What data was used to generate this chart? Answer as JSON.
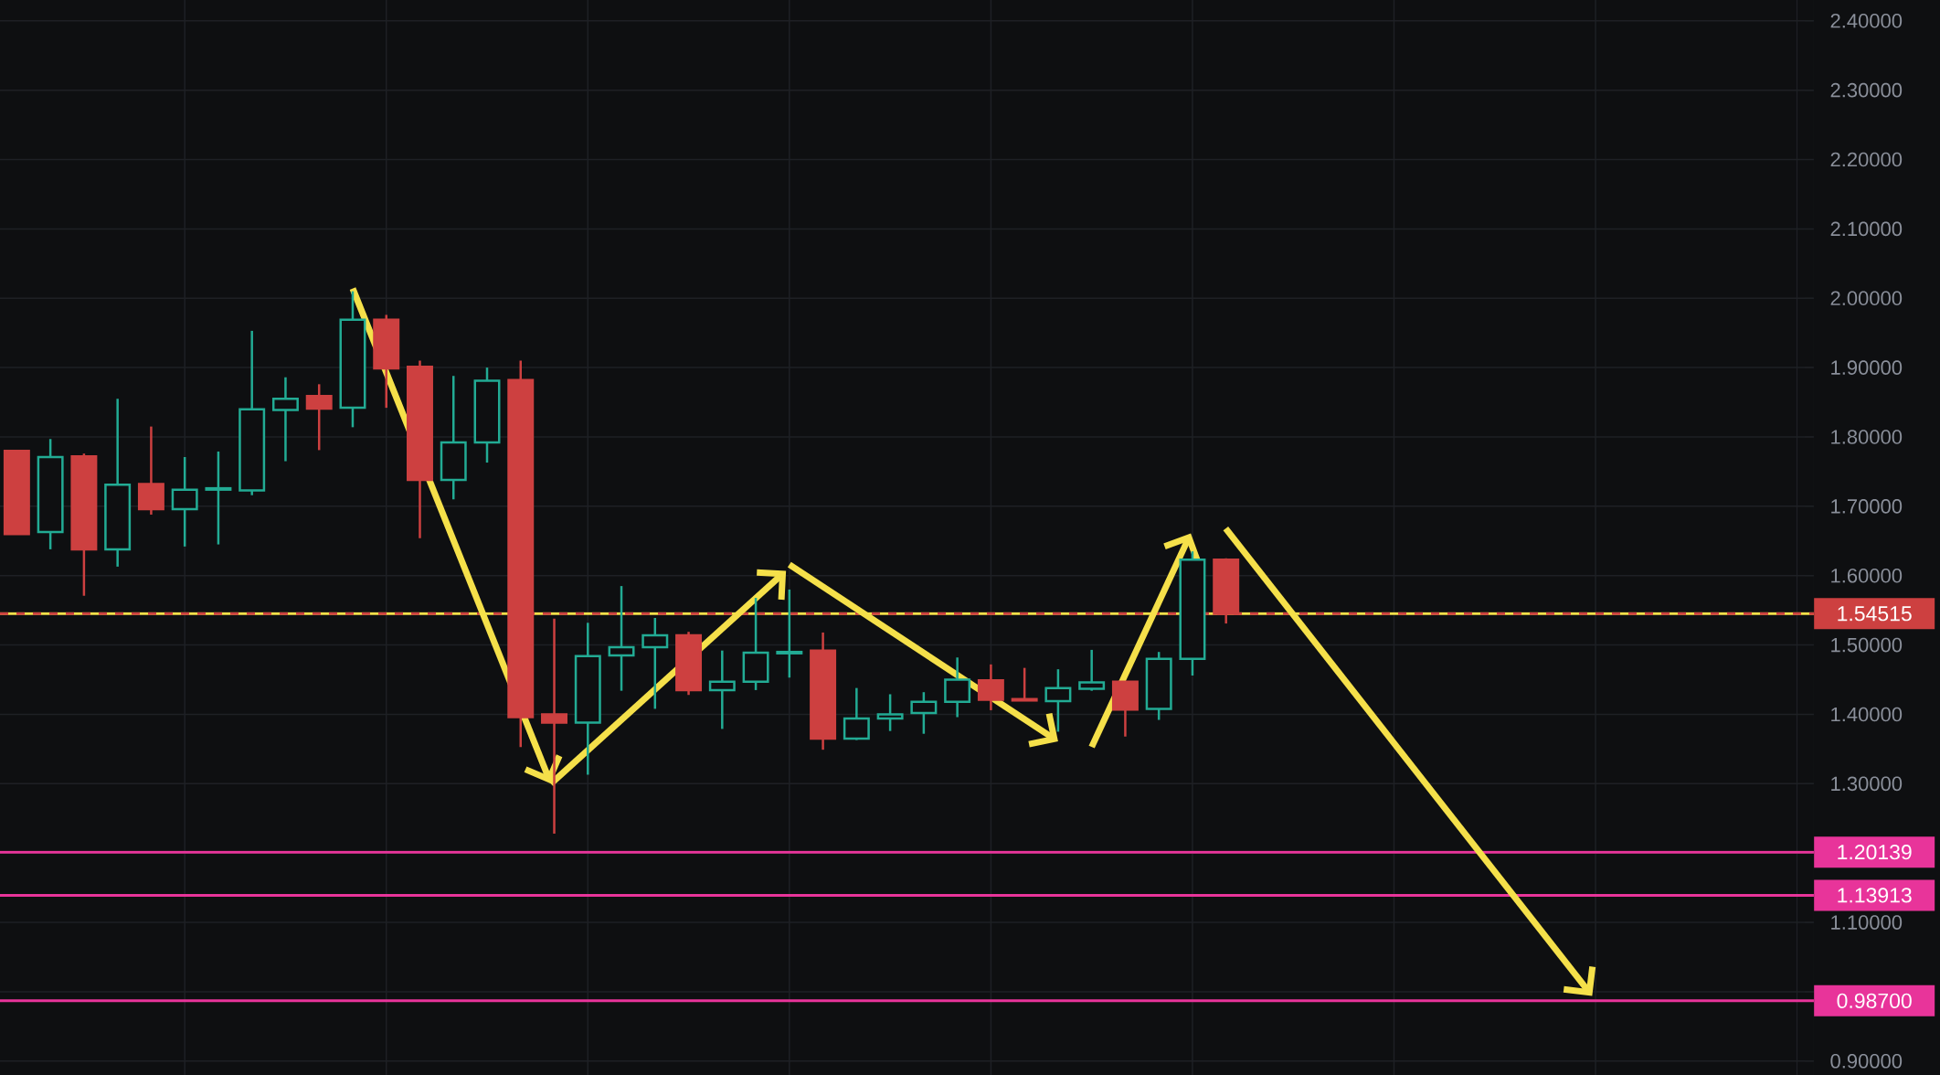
{
  "chart_data": {
    "type": "candlestick",
    "categories": [
      null,
      null,
      null,
      null,
      null,
      null,
      null,
      null,
      null,
      null,
      null,
      null,
      null,
      null,
      null,
      null,
      null,
      null,
      null,
      null,
      null,
      null,
      null,
      null,
      null,
      null,
      null,
      null,
      null,
      null,
      null,
      null,
      null,
      null,
      null,
      null,
      null,
      null,
      null,
      null,
      null,
      null,
      null,
      null,
      null,
      null,
      null,
      null,
      null,
      null,
      null,
      null,
      null,
      null
    ],
    "ohlc": [
      [
        1.78,
        1.78,
        1.66,
        1.66
      ],
      [
        1.663,
        1.797,
        1.638,
        1.771
      ],
      [
        1.772,
        1.776,
        1.571,
        1.638
      ],
      [
        1.638,
        1.855,
        1.613,
        1.731
      ],
      [
        1.732,
        1.815,
        1.688,
        1.696
      ],
      [
        1.696,
        1.771,
        1.642,
        1.724
      ],
      [
        1.724,
        1.779,
        1.645,
        1.726
      ],
      [
        1.723,
        1.953,
        1.716,
        1.84
      ],
      [
        1.839,
        1.886,
        1.765,
        1.855
      ],
      [
        1.859,
        1.876,
        1.781,
        1.841
      ],
      [
        1.842,
        2.01,
        1.814,
        1.969
      ],
      [
        1.969,
        1.976,
        1.842,
        1.899
      ],
      [
        1.901,
        1.91,
        1.654,
        1.738
      ],
      [
        1.738,
        1.888,
        1.71,
        1.792
      ],
      [
        1.792,
        1.9,
        1.763,
        1.881
      ],
      [
        1.882,
        1.91,
        1.353,
        1.396
      ],
      [
        1.4,
        1.538,
        1.228,
        1.388
      ],
      [
        1.388,
        1.532,
        1.313,
        1.484
      ],
      [
        1.485,
        1.585,
        1.434,
        1.497
      ],
      [
        1.497,
        1.539,
        1.408,
        1.514
      ],
      [
        1.514,
        1.519,
        1.428,
        1.435
      ],
      [
        1.435,
        1.492,
        1.379,
        1.447
      ],
      [
        1.447,
        1.568,
        1.435,
        1.489
      ],
      [
        1.488,
        1.58,
        1.453,
        1.49
      ],
      [
        1.492,
        1.518,
        1.349,
        1.365
      ],
      [
        1.365,
        1.438,
        1.363,
        1.394
      ],
      [
        1.394,
        1.429,
        1.376,
        1.4
      ],
      [
        1.402,
        1.432,
        1.372,
        1.418
      ],
      [
        1.418,
        1.482,
        1.396,
        1.45
      ],
      [
        1.449,
        1.472,
        1.406,
        1.421
      ],
      [
        1.422,
        1.467,
        1.42,
        1.42
      ],
      [
        1.419,
        1.465,
        1.375,
        1.438
      ],
      [
        1.437,
        1.493,
        1.434,
        1.446
      ],
      [
        1.447,
        1.447,
        1.368,
        1.407
      ],
      [
        1.408,
        1.49,
        1.392,
        1.48
      ],
      [
        1.48,
        1.635,
        1.456,
        1.623
      ],
      [
        1.623,
        1.625,
        1.531,
        1.545
      ],
      null,
      null,
      null,
      null,
      null,
      null,
      null,
      null,
      null,
      null,
      null,
      null,
      null,
      null,
      null,
      null,
      null
    ],
    "colors": [
      "#cd4040",
      "#22ab94",
      "#cd4040",
      "#22ab94",
      "#cd4040",
      "#22ab94",
      "#22ab94",
      "#22ab94",
      "#22ab94",
      "#cd4040",
      "#22ab94",
      "#cd4040",
      "#cd4040",
      "#22ab94",
      "#22ab94",
      "#cd4040",
      "#cd4040",
      "#22ab94",
      "#22ab94",
      "#22ab94",
      "#cd4040",
      "#22ab94",
      "#22ab94",
      "#22ab94",
      "#cd4040",
      "#22ab94",
      "#22ab94",
      "#22ab94",
      "#22ab94",
      "#cd4040",
      "#cd4040",
      "#22ab94",
      "#22ab94",
      "#cd4040",
      "#22ab94",
      "#22ab94",
      "#cd4040",
      null,
      null,
      null,
      null,
      null,
      null,
      null,
      null,
      null,
      null,
      null,
      null,
      null,
      null,
      null,
      null,
      null
    ],
    "ylim": [
      0.88,
      2.43
    ],
    "yticks": [
      {
        "value": 0.9,
        "label": "0.90000"
      },
      {
        "value": 1.0,
        "label": null
      },
      {
        "value": 1.1,
        "label": "1.10000"
      },
      {
        "value": 1.2,
        "label": null
      },
      {
        "value": 1.3,
        "label": "1.30000"
      },
      {
        "value": 1.4,
        "label": "1.40000"
      },
      {
        "value": 1.5,
        "label": "1.50000"
      },
      {
        "value": 1.6,
        "label": "1.60000"
      },
      {
        "value": 1.7,
        "label": "1.70000"
      },
      {
        "value": 1.8,
        "label": "1.80000"
      },
      {
        "value": 1.9,
        "label": "1.90000"
      },
      {
        "value": 2.0,
        "label": "2.00000"
      },
      {
        "value": 2.1,
        "label": "2.10000"
      },
      {
        "value": 2.2,
        "label": "2.20000"
      },
      {
        "value": 2.3,
        "label": "2.30000"
      },
      {
        "value": 2.4,
        "label": "2.40000"
      }
    ],
    "ref_lines": [
      {
        "axis": "y",
        "value": 1.54515,
        "color": "#f5e04a",
        "line_style": "solid"
      },
      {
        "axis": "y",
        "value": 1.54515,
        "label": "1.54515",
        "color": "#cd4040",
        "line_style": "dashed"
      },
      {
        "axis": "y",
        "value": 1.20139,
        "label": "1.20139",
        "color": "#e8349a",
        "line_style": "solid"
      },
      {
        "axis": "y",
        "value": 1.13913,
        "label": "1.13913",
        "color": "#e8349a",
        "line_style": "solid"
      },
      {
        "axis": "y",
        "value": 0.987,
        "label": "0.98700",
        "color": "#e8349a",
        "line_style": "solid"
      }
    ],
    "grid": true,
    "tick_labels": "y"
  }
}
